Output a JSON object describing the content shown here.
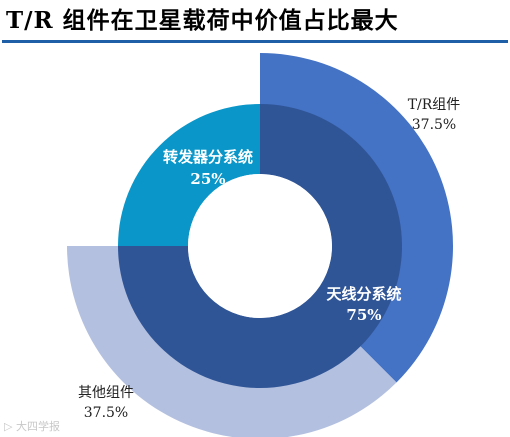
{
  "title": "T/R 组件在卫星载荷中价值占比最大",
  "watermark": "▷ 大四学报",
  "chart_data": {
    "type": "pie",
    "title": "T/R 组件在卫星载荷中价值占比最大",
    "outer_ring": [
      {
        "label": "T/R组件",
        "value_text": "37.5%",
        "value": 37.5,
        "color": "#4472c4"
      },
      {
        "label": "其他组件",
        "value_text": "37.5%",
        "value": 37.5,
        "color": "#b4c0df"
      }
    ],
    "inner_ring": [
      {
        "label": "天线分系统",
        "value_text": "75%",
        "value": 75,
        "color": "#2f5597"
      },
      {
        "label": "转发器分系统",
        "value_text": "25%",
        "value": 25,
        "color": "#0a96c8"
      }
    ]
  }
}
